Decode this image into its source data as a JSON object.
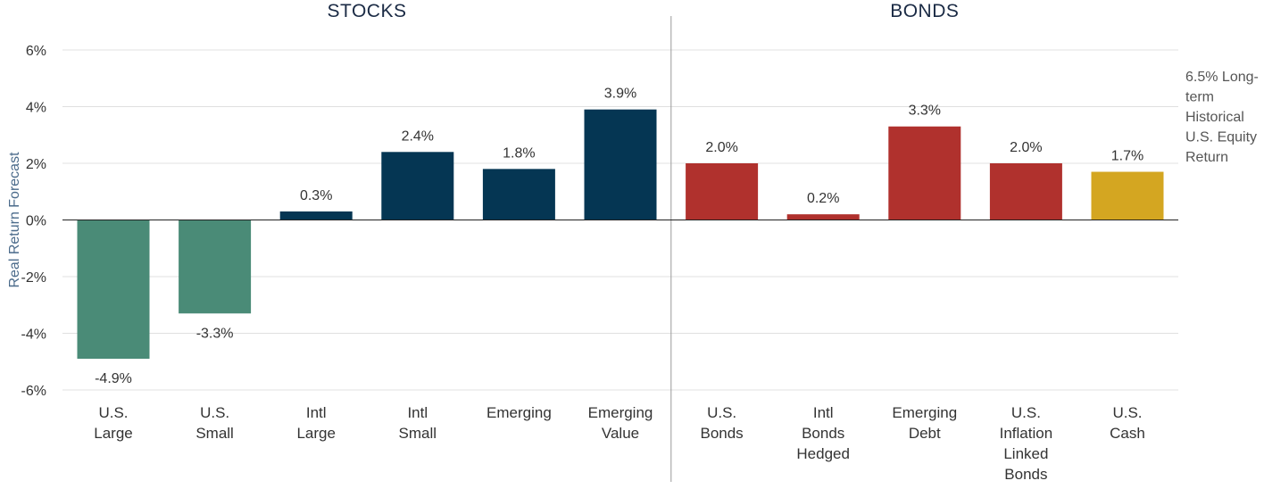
{
  "chart_data": {
    "type": "bar",
    "ylabel": "Real Return Forecast",
    "ylim": [
      -6,
      6
    ],
    "yticks": [
      6,
      4,
      2,
      0,
      -2,
      -4,
      -6
    ],
    "ytick_labels": [
      "6%",
      "4%",
      "2%",
      "0%",
      "-2%",
      "-4%",
      "-6%"
    ],
    "grid": true,
    "groups": [
      {
        "label": "STOCKS",
        "categories": 6
      },
      {
        "label": "BONDS",
        "categories": 5
      }
    ],
    "categories": [
      {
        "label": [
          "U.S.",
          "Large"
        ],
        "value": -4.9,
        "value_label": "-4.9%",
        "color": "#4a8b77"
      },
      {
        "label": [
          "U.S.",
          "Small"
        ],
        "value": -3.3,
        "value_label": "-3.3%",
        "color": "#4a8b77"
      },
      {
        "label": [
          "Intl",
          "Large"
        ],
        "value": 0.3,
        "value_label": "0.3%",
        "color": "#053653"
      },
      {
        "label": [
          "Intl",
          "Small"
        ],
        "value": 2.4,
        "value_label": "2.4%",
        "color": "#053653"
      },
      {
        "label": [
          "Emerging"
        ],
        "value": 1.8,
        "value_label": "1.8%",
        "color": "#053653"
      },
      {
        "label": [
          "Emerging",
          "Value"
        ],
        "value": 3.9,
        "value_label": "3.9%",
        "color": "#053653"
      },
      {
        "label": [
          "U.S.",
          "Bonds"
        ],
        "value": 2.0,
        "value_label": "2.0%",
        "color": "#b0312d"
      },
      {
        "label": [
          "Intl",
          "Bonds",
          "Hedged"
        ],
        "value": 0.2,
        "value_label": "0.2%",
        "color": "#b0312d"
      },
      {
        "label": [
          "Emerging",
          "Debt"
        ],
        "value": 3.3,
        "value_label": "3.3%",
        "color": "#b0312d"
      },
      {
        "label": [
          "U.S.",
          "Inflation",
          "Linked",
          "Bonds"
        ],
        "value": 2.0,
        "value_label": "2.0%",
        "color": "#b0312d"
      },
      {
        "label": [
          "U.S.",
          "Cash"
        ],
        "value": 1.7,
        "value_label": "1.7%",
        "color": "#d4a621"
      }
    ],
    "annotation": [
      "6.5% Long-",
      "term",
      "Historical",
      "U.S. Equity",
      "Return"
    ]
  }
}
